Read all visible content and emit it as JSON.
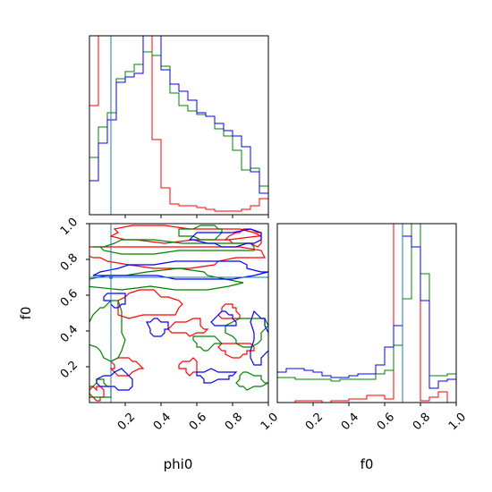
{
  "chart_data": {
    "type": "corner",
    "parameters": [
      "phi0",
      "f0"
    ],
    "truths": {
      "phi0": 0.12,
      "f0": 0.7
    },
    "series_colors": {
      "red": "#ff0000",
      "green": "#008000",
      "blue": "#0000ff",
      "truth": "#1f77b4"
    },
    "axes": {
      "xlim": [
        0.0,
        1.0
      ],
      "ylim": [
        0.0,
        1.0
      ],
      "xticks": [
        "0.2",
        "0.4",
        "0.6",
        "0.8",
        "1.0"
      ],
      "yticks": [
        "0.2",
        "0.4",
        "0.6",
        "0.8",
        "1.0"
      ],
      "xlabel_left": "phi0",
      "xlabel_right": "f0",
      "ylabel": "f0"
    },
    "panels": [
      {
        "name": "phi0-marginal",
        "type": "histogram",
        "bins": [
          0.0,
          0.05,
          0.1,
          0.15,
          0.2,
          0.25,
          0.3,
          0.35,
          0.4,
          0.45,
          0.5,
          0.55,
          0.6,
          0.65,
          0.7,
          0.75,
          0.8,
          0.85,
          0.9,
          0.95,
          1.0
        ],
        "series": [
          {
            "color": "red",
            "values": [
              0.61,
              1.0,
              1.0,
              1.0,
              1.0,
              1.0,
              1.0,
              0.42,
              0.15,
              0.06,
              0.05,
              0.05,
              0.04,
              0.03,
              0.02,
              0.02,
              0.02,
              0.03,
              0.05,
              0.09
            ]
          },
          {
            "color": "green",
            "values": [
              0.32,
              0.49,
              0.57,
              0.76,
              0.8,
              0.84,
              0.91,
              0.89,
              0.83,
              0.68,
              0.61,
              0.58,
              0.56,
              0.55,
              0.48,
              0.44,
              0.36,
              0.25,
              0.26,
              0.16
            ]
          },
          {
            "color": "blue",
            "values": [
              0.19,
              0.4,
              0.53,
              0.74,
              0.77,
              0.79,
              1.0,
              1.0,
              0.81,
              0.73,
              0.69,
              0.64,
              0.57,
              0.55,
              0.51,
              0.47,
              0.44,
              0.38,
              0.24,
              0.12
            ]
          }
        ]
      },
      {
        "name": "f0-marginal",
        "type": "histogram",
        "bins": [
          0.0,
          0.05,
          0.1,
          0.15,
          0.2,
          0.25,
          0.3,
          0.35,
          0.4,
          0.45,
          0.5,
          0.55,
          0.6,
          0.65,
          0.7,
          0.75,
          0.8,
          0.85,
          0.9,
          0.95,
          1.0
        ],
        "series": [
          {
            "color": "red",
            "values": [
              0.0,
              0.0,
              0.01,
              0.01,
              0.01,
              0.0,
              0.01,
              0.01,
              0.02,
              0.02,
              0.04,
              0.04,
              0.02,
              1.0,
              1.0,
              1.0,
              0.01,
              0.03,
              0.06,
              0.0
            ]
          },
          {
            "color": "green",
            "values": [
              0.14,
              0.14,
              0.13,
              0.13,
              0.13,
              0.13,
              0.12,
              0.13,
              0.13,
              0.13,
              0.13,
              0.16,
              0.18,
              0.32,
              0.58,
              1.0,
              0.72,
              0.15,
              0.15,
              0.16
            ]
          },
          {
            "color": "blue",
            "values": [
              0.17,
              0.19,
              0.19,
              0.18,
              0.17,
              0.15,
              0.14,
              0.14,
              0.15,
              0.16,
              0.16,
              0.21,
              0.31,
              0.43,
              0.93,
              0.87,
              0.57,
              0.08,
              0.12,
              0.13
            ]
          }
        ]
      },
      {
        "name": "phi0-f0-joint",
        "type": "contour",
        "series": [
          {
            "color": "red",
            "blobs": [
              {
                "cx": 0.45,
                "cy": 0.82,
                "rx": 0.48,
                "ry": 0.06
              },
              {
                "cx": 0.5,
                "cy": 0.94,
                "rx": 0.42,
                "ry": 0.04
              },
              {
                "cx": 0.32,
                "cy": 0.55,
                "rx": 0.18,
                "ry": 0.07
              },
              {
                "cx": 0.55,
                "cy": 0.42,
                "rx": 0.1,
                "ry": 0.04
              },
              {
                "cx": 0.56,
                "cy": 0.2,
                "rx": 0.05,
                "ry": 0.04
              },
              {
                "cx": 0.82,
                "cy": 0.3,
                "rx": 0.09,
                "ry": 0.04
              },
              {
                "cx": 0.2,
                "cy": 0.2,
                "rx": 0.08,
                "ry": 0.05
              },
              {
                "cx": 0.78,
                "cy": 0.5,
                "rx": 0.06,
                "ry": 0.04
              },
              {
                "cx": 0.88,
                "cy": 0.92,
                "rx": 0.1,
                "ry": 0.04
              },
              {
                "cx": 0.04,
                "cy": 0.05,
                "rx": 0.04,
                "ry": 0.04
              }
            ]
          },
          {
            "color": "green",
            "blobs": [
              {
                "cx": 0.45,
                "cy": 0.87,
                "rx": 0.45,
                "ry": 0.03
              },
              {
                "cx": 0.4,
                "cy": 0.68,
                "rx": 0.45,
                "ry": 0.05
              },
              {
                "cx": 0.1,
                "cy": 0.4,
                "rx": 0.1,
                "ry": 0.16
              },
              {
                "cx": 0.88,
                "cy": 0.4,
                "rx": 0.1,
                "ry": 0.08
              },
              {
                "cx": 0.65,
                "cy": 0.34,
                "rx": 0.07,
                "ry": 0.04
              },
              {
                "cx": 0.9,
                "cy": 0.12,
                "rx": 0.08,
                "ry": 0.04
              },
              {
                "cx": 0.06,
                "cy": 0.07,
                "rx": 0.06,
                "ry": 0.05
              },
              {
                "cx": 0.63,
                "cy": 0.95,
                "rx": 0.12,
                "ry": 0.04
              }
            ]
          },
          {
            "color": "blue",
            "blobs": [
              {
                "cx": 0.55,
                "cy": 0.74,
                "rx": 0.45,
                "ry": 0.05
              },
              {
                "cx": 0.15,
                "cy": 0.58,
                "rx": 0.06,
                "ry": 0.04
              },
              {
                "cx": 0.38,
                "cy": 0.42,
                "rx": 0.05,
                "ry": 0.05
              },
              {
                "cx": 0.95,
                "cy": 0.35,
                "rx": 0.05,
                "ry": 0.14
              },
              {
                "cx": 0.75,
                "cy": 0.46,
                "rx": 0.07,
                "ry": 0.04
              },
              {
                "cx": 0.15,
                "cy": 0.12,
                "rx": 0.1,
                "ry": 0.05
              },
              {
                "cx": 0.78,
                "cy": 0.92,
                "rx": 0.2,
                "ry": 0.04
              },
              {
                "cx": 0.7,
                "cy": 0.15,
                "rx": 0.1,
                "ry": 0.03
              }
            ]
          }
        ]
      }
    ]
  }
}
